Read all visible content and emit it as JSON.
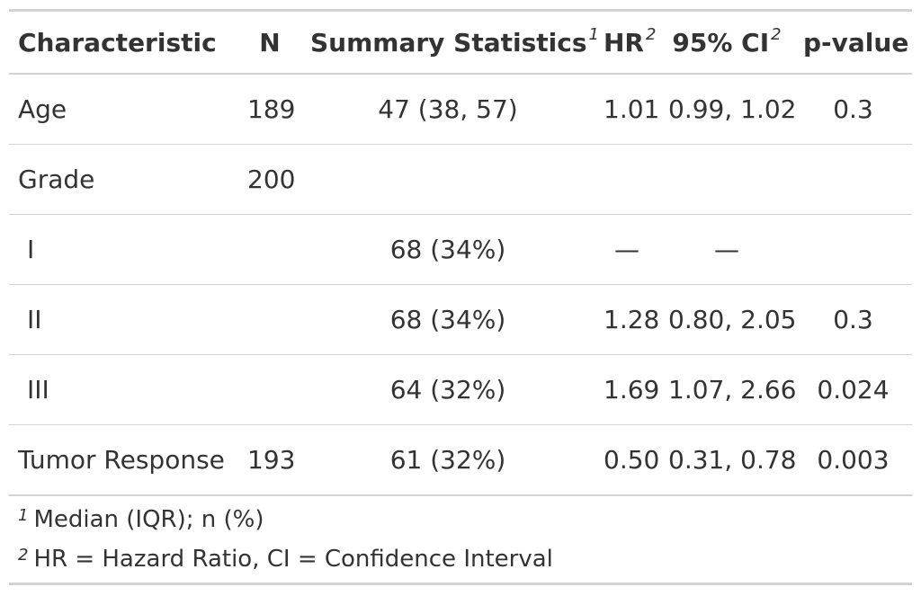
{
  "header": {
    "characteristic": "Characteristic",
    "n": "N",
    "summary": "Summary Statistics",
    "summary_sup": "1",
    "hr": "HR",
    "hr_sup": "2",
    "ci": "95% CI",
    "ci_sup": "2",
    "pvalue": "p-value"
  },
  "rows": [
    {
      "label": "Age",
      "n": "189",
      "stat": "47 (38, 57)",
      "hr": "1.01",
      "ci": "0.99, 1.02",
      "p": "0.3"
    },
    {
      "label": "Grade",
      "n": "200",
      "stat": "",
      "hr": "",
      "ci": "",
      "p": ""
    },
    {
      "label": "I",
      "n": "",
      "stat": "68 (34%)",
      "hr": "—",
      "ci": "—",
      "p": ""
    },
    {
      "label": "II",
      "n": "",
      "stat": "68 (34%)",
      "hr": "1.28",
      "ci": "0.80, 2.05",
      "p": "0.3"
    },
    {
      "label": "III",
      "n": "",
      "stat": "64 (32%)",
      "hr": "1.69",
      "ci": "1.07, 2.66",
      "p": "0.024"
    },
    {
      "label": "Tumor Response",
      "n": "193",
      "stat": "61 (32%)",
      "hr": "0.50",
      "ci": "0.31, 0.78",
      "p": "0.003"
    }
  ],
  "footnotes": [
    {
      "mark": "1",
      "text": "Median (IQR); n (%)"
    },
    {
      "mark": "2",
      "text": "HR = Hazard Ratio, CI = Confidence Interval"
    }
  ]
}
